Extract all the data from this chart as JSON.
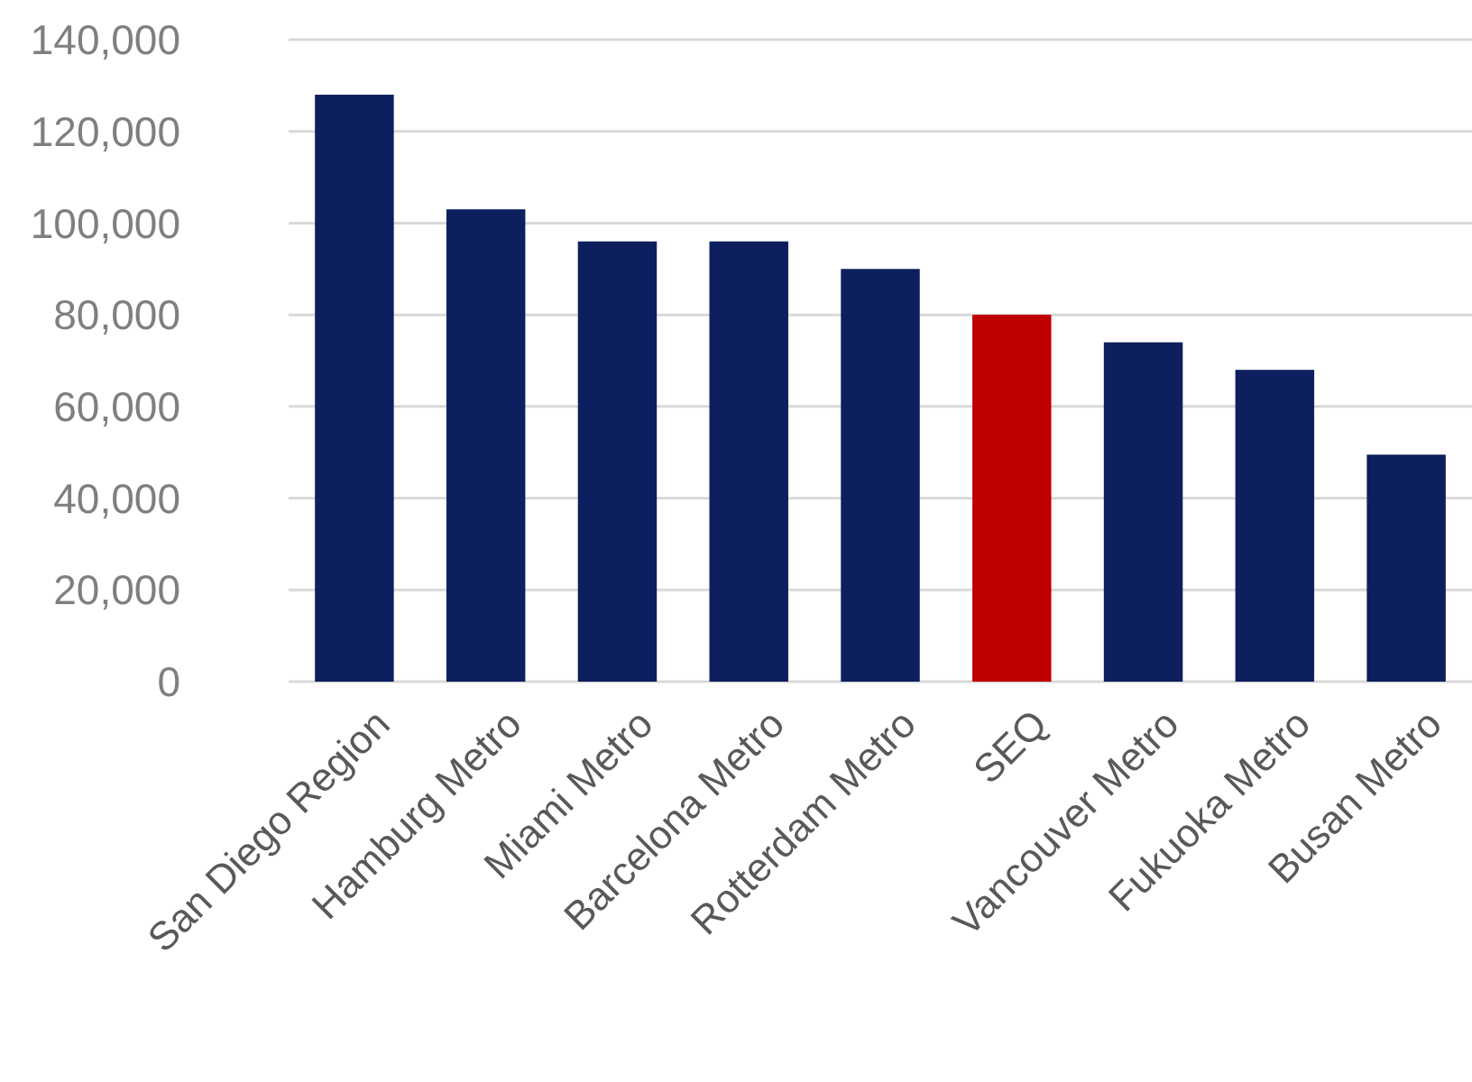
{
  "chart_data": {
    "type": "bar",
    "categories": [
      "San Diego Region",
      "Hamburg Metro",
      "Miami Metro",
      "Barcelona Metro",
      "Rotterdam Metro",
      "SEQ",
      "Vancouver Metro",
      "Fukuoka Metro",
      "Busan Metro"
    ],
    "values": [
      128000,
      103000,
      96000,
      96000,
      90000,
      80000,
      74000,
      68000,
      49500
    ],
    "colors": [
      "#0d1f5e",
      "#0d1f5e",
      "#0d1f5e",
      "#0d1f5e",
      "#0d1f5e",
      "#c00000",
      "#0d1f5e",
      "#0d1f5e",
      "#0d1f5e"
    ],
    "ylim": [
      0,
      140000
    ],
    "yticks": [
      {
        "value": 0,
        "label": "0"
      },
      {
        "value": 20000,
        "label": "20,000"
      },
      {
        "value": 40000,
        "label": "40,000"
      },
      {
        "value": 60000,
        "label": "60,000"
      },
      {
        "value": 80000,
        "label": "80,000"
      },
      {
        "value": 100000,
        "label": "100,000"
      },
      {
        "value": 120000,
        "label": "120,000"
      },
      {
        "value": 140000,
        "label": "140,000"
      }
    ],
    "grid": true
  }
}
